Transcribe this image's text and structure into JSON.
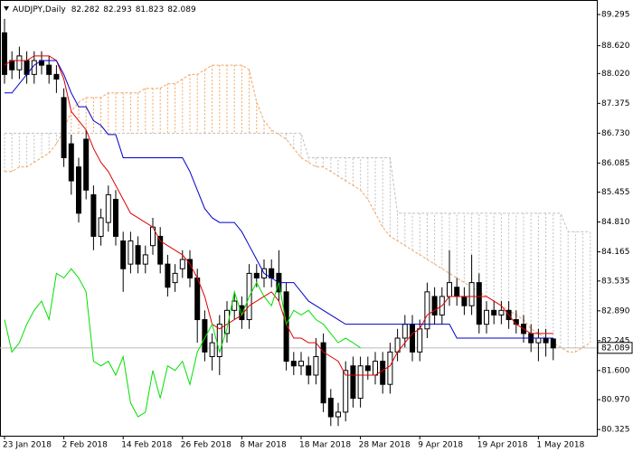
{
  "chart_data": {
    "type": "candlestick",
    "symbol": "AUDJPY,Daily",
    "categories": [
      "23 Jan 2018",
      null,
      null,
      null,
      null,
      null,
      null,
      null,
      "2 Feb 2018",
      null,
      null,
      null,
      null,
      null,
      null,
      null,
      "14 Feb 2018",
      null,
      null,
      null,
      null,
      null,
      null,
      null,
      "26 Feb 2018",
      null,
      null,
      null,
      null,
      null,
      null,
      null,
      "8 Mar 2018",
      null,
      null,
      null,
      null,
      null,
      null,
      null,
      "18 Mar 2018",
      null,
      null,
      null,
      null,
      null,
      null,
      null,
      "28 Mar 2018",
      null,
      null,
      null,
      null,
      null,
      null,
      null,
      "9 Apr 2018",
      null,
      null,
      null,
      null,
      null,
      null,
      null,
      "19 Apr 2018",
      null,
      null,
      null,
      null,
      null,
      null,
      null,
      "1 May 2018",
      null,
      null
    ],
    "open": [
      88.9,
      88.3,
      88.1,
      88.3,
      88.0,
      88.3,
      88.2,
      88.0,
      87.5,
      86.5,
      86.0,
      86.6,
      85.4,
      84.5,
      84.8,
      85.3,
      84.4,
      83.9,
      84.3,
      83.9,
      84.3,
      84.5,
      83.9,
      83.5,
      83.8,
      84.0,
      83.6,
      82.7,
      81.9,
      81.9,
      82.4,
      82.9,
      83.0,
      82.7,
      83.7,
      83.6,
      83.8,
      83.7,
      83.3,
      81.8,
      81.7,
      81.7,
      81.5,
      82.2,
      81.0,
      80.6,
      80.7,
      81.7,
      81.0,
      81.7,
      81.5,
      81.8,
      81.3,
      82.0,
      82.3,
      82.6,
      82.0,
      82.5,
      83.2,
      82.8,
      83.2,
      83.4,
      83.2,
      83.0,
      83.5,
      82.6,
      82.9,
      82.8,
      82.9,
      82.7,
      82.6,
      82.4,
      82.2,
      82.3,
      82.282
    ],
    "high": [
      89.2,
      88.5,
      88.6,
      88.5,
      88.5,
      88.5,
      88.4,
      88.2,
      87.7,
      86.7,
      86.2,
      86.8,
      85.6,
      85.1,
      85.6,
      85.5,
      84.6,
      84.6,
      84.5,
      84.3,
      84.9,
      84.7,
      84.1,
      83.9,
      84.2,
      84.2,
      83.8,
      82.9,
      82.4,
      82.8,
      83.1,
      83.3,
      83.2,
      83.9,
      83.9,
      84.0,
      84.0,
      84.2,
      83.5,
      82.0,
      82.0,
      81.9,
      82.3,
      82.4,
      81.2,
      80.9,
      81.8,
      81.9,
      81.9,
      81.9,
      82.0,
      82.0,
      82.2,
      82.5,
      82.8,
      82.8,
      82.7,
      83.5,
      83.4,
      83.4,
      84.2,
      83.6,
      83.4,
      84.1,
      83.7,
      83.1,
      83.1,
      83.1,
      83.1,
      82.9,
      82.8,
      82.6,
      82.5,
      82.5,
      82.293
    ],
    "low": [
      87.8,
      87.9,
      87.9,
      87.8,
      87.8,
      88.0,
      87.8,
      87.6,
      86.0,
      85.4,
      84.8,
      85.3,
      84.2,
      84.3,
      84.6,
      84.3,
      83.3,
      83.7,
      83.7,
      83.7,
      84.1,
      83.7,
      83.2,
      83.3,
      83.6,
      83.4,
      82.2,
      81.8,
      81.6,
      81.5,
      82.2,
      82.7,
      82.5,
      82.5,
      83.4,
      83.4,
      83.4,
      83.1,
      81.6,
      81.5,
      81.5,
      81.3,
      81.3,
      80.7,
      80.4,
      80.4,
      80.5,
      80.8,
      80.8,
      81.4,
      81.3,
      81.1,
      81.1,
      81.8,
      82.1,
      81.8,
      81.8,
      82.3,
      82.6,
      82.6,
      83.0,
      83.0,
      82.8,
      82.8,
      82.4,
      82.4,
      82.6,
      82.6,
      82.5,
      82.4,
      82.2,
      82.0,
      81.8,
      81.9,
      81.823
    ],
    "close": [
      88.0,
      88.1,
      88.4,
      88.0,
      88.3,
      88.2,
      88.0,
      87.9,
      86.2,
      85.7,
      85.0,
      85.5,
      84.5,
      84.9,
      85.4,
      84.5,
      83.8,
      84.4,
      83.9,
      84.1,
      84.7,
      83.9,
      83.4,
      83.7,
      84.0,
      83.6,
      82.7,
      82.0,
      82.2,
      82.6,
      82.9,
      83.1,
      82.7,
      83.7,
      83.6,
      83.8,
      83.6,
      83.3,
      81.8,
      81.7,
      81.8,
      81.5,
      81.9,
      80.9,
      80.6,
      80.7,
      81.6,
      81.0,
      81.7,
      81.6,
      81.8,
      81.3,
      82.0,
      82.3,
      82.6,
      82.0,
      82.5,
      83.3,
      82.8,
      83.2,
      83.5,
      83.2,
      83.0,
      83.5,
      82.6,
      82.9,
      82.8,
      82.9,
      82.7,
      82.6,
      82.4,
      82.2,
      82.3,
      82.2,
      82.089
    ],
    "up_color": "#ffffff",
    "down_color": "#000000",
    "lines": [
      {
        "color": "#e00000",
        "values": [
          88.2,
          88.3,
          88.3,
          88.3,
          88.4,
          88.4,
          88.4,
          88.3,
          87.9,
          87.2,
          87.0,
          86.8,
          86.4,
          86.1,
          85.9,
          85.6,
          85.3,
          85.0,
          84.9,
          84.8,
          84.7,
          84.4,
          84.3,
          84.2,
          84.1,
          83.9,
          83.6,
          83.2,
          82.6,
          82.5,
          82.6,
          82.7,
          82.8,
          83.0,
          83.1,
          83.2,
          83.3,
          83.1,
          82.6,
          82.3,
          82.3,
          82.2,
          82.2,
          82.0,
          81.9,
          81.8,
          81.5,
          81.5,
          81.5,
          81.5,
          81.5,
          81.6,
          81.7,
          82.0,
          82.2,
          82.4,
          82.5,
          82.8,
          82.9,
          83.0,
          83.2,
          83.2,
          83.2,
          83.2,
          83.2,
          83.2,
          83.1,
          83.0,
          82.8,
          82.6,
          82.5,
          82.4,
          82.4,
          82.4,
          82.4
        ]
      },
      {
        "color": "#0000c8",
        "values": [
          87.6,
          87.6,
          87.8,
          88.0,
          88.2,
          88.3,
          88.3,
          88.3,
          88.0,
          87.6,
          87.3,
          87.3,
          87.0,
          86.9,
          86.7,
          86.7,
          86.2,
          86.2,
          86.2,
          86.2,
          86.2,
          86.2,
          86.2,
          86.2,
          86.2,
          85.9,
          85.5,
          85.1,
          84.9,
          84.8,
          84.8,
          84.8,
          84.6,
          84.3,
          84.0,
          83.7,
          83.6,
          83.5,
          83.5,
          83.5,
          83.3,
          83.1,
          83.0,
          82.9,
          82.8,
          82.7,
          82.6,
          82.6,
          82.6,
          82.6,
          82.6,
          82.6,
          82.6,
          82.6,
          82.6,
          82.6,
          82.6,
          82.6,
          82.6,
          82.6,
          82.6,
          82.3,
          82.3,
          82.3,
          82.3,
          82.3,
          82.3,
          82.3,
          82.3,
          82.3,
          82.3,
          82.3,
          82.3,
          82.3,
          82.3
        ]
      },
      {
        "color": "#00e000",
        "values": [
          82.7,
          82.0,
          82.2,
          82.6,
          82.9,
          83.1,
          82.7,
          83.7,
          83.6,
          83.8,
          83.6,
          83.3,
          81.8,
          81.7,
          81.8,
          81.5,
          81.9,
          80.9,
          80.6,
          80.7,
          81.6,
          81.0,
          81.7,
          81.6,
          81.8,
          81.3,
          82.0,
          82.3,
          82.6,
          82.0,
          82.5,
          83.3,
          82.8,
          83.2,
          83.5,
          83.2,
          83.0,
          83.5,
          82.6,
          82.9,
          82.8,
          82.9,
          82.7,
          82.6,
          82.4,
          82.2,
          82.3,
          82.2,
          82.089
        ]
      }
    ],
    "cloud": {
      "span_a": {
        "color": "#f4a460",
        "values": [
          85.9,
          85.9,
          86.0,
          86.0,
          86.1,
          86.2,
          86.3,
          86.5,
          86.8,
          87.2,
          87.4,
          87.5,
          87.5,
          87.5,
          87.6,
          87.6,
          87.6,
          87.6,
          87.6,
          87.7,
          87.7,
          87.7,
          87.8,
          87.8,
          87.9,
          88.0,
          88.0,
          88.1,
          88.2,
          88.2,
          88.2,
          88.2,
          88.2,
          88.1,
          87.4,
          87.0,
          86.8,
          86.7,
          86.6,
          86.4,
          86.2,
          86.1,
          86.0,
          86.0,
          85.9,
          85.8,
          85.7,
          85.6,
          85.5,
          85.3,
          85.0,
          84.7,
          84.5,
          84.4,
          84.3,
          84.2,
          84.1,
          84.0,
          83.9,
          83.8,
          83.7,
          83.6,
          83.5,
          83.4,
          83.3,
          83.2,
          83.1,
          83.0,
          82.9,
          82.8,
          82.7,
          82.5,
          82.4,
          82.3,
          82.2,
          82.1,
          82.0,
          82.0,
          82.1,
          82.2
        ]
      },
      "span_b": {
        "color": "#c0c0c0",
        "values": [
          86.73,
          86.73,
          86.73,
          86.73,
          86.73,
          86.73,
          86.73,
          86.73,
          86.73,
          86.73,
          86.73,
          86.73,
          86.73,
          86.73,
          86.73,
          86.73,
          86.73,
          86.73,
          86.73,
          86.73,
          86.73,
          86.73,
          86.73,
          86.73,
          86.73,
          86.73,
          86.73,
          86.73,
          86.73,
          86.73,
          86.73,
          86.73,
          86.73,
          86.73,
          86.73,
          86.73,
          86.73,
          86.73,
          86.73,
          86.73,
          86.73,
          86.2,
          86.2,
          86.2,
          86.2,
          86.2,
          86.2,
          86.2,
          86.2,
          86.2,
          86.2,
          86.2,
          86.2,
          85.0,
          85.0,
          85.0,
          85.0,
          85.0,
          85.0,
          85.0,
          85.0,
          85.0,
          85.0,
          85.0,
          85.0,
          85.0,
          85.0,
          85.0,
          85.0,
          85.0,
          85.0,
          85.0,
          85.0,
          85.0,
          85.0,
          85.0,
          84.6,
          84.6,
          84.6,
          84.6
        ]
      }
    },
    "ylim": [
      80.19,
      89.57
    ],
    "yticks": [
      89.295,
      {
        "value": 88.62,
        "label": "88.620"
      },
      {
        "value": 88.02,
        "label": "88.020"
      },
      87.375,
      {
        "value": 86.73,
        "label": "86.730"
      },
      86.085,
      85.455,
      {
        "value": 84.81,
        "label": "84.810"
      },
      84.165,
      83.535,
      {
        "value": 82.89,
        "label": "82.890"
      },
      82.245,
      {
        "value": 81.6,
        "label": "81.600"
      },
      {
        "value": 80.97,
        "label": "80.970"
      },
      80.325
    ]
  }
}
